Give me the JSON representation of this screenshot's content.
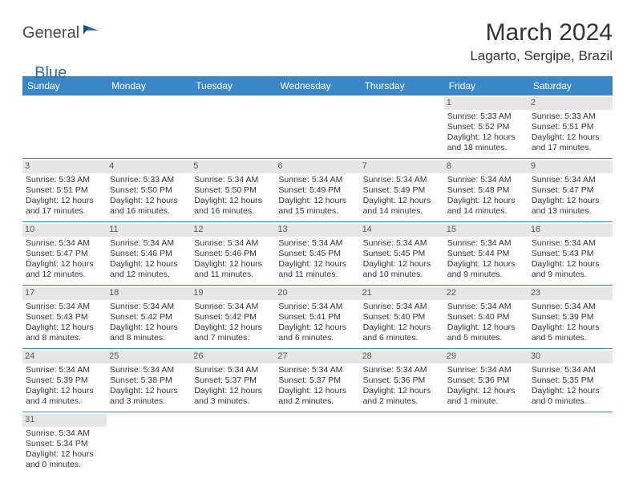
{
  "logo": {
    "part1": "General",
    "part2": "Blue"
  },
  "title": "March 2024",
  "location": "Lagarto, Sergipe, Brazil",
  "colors": {
    "header_bg": "#3b86c6",
    "header_text": "#ffffff",
    "daynum_bg": "#e6e6e6",
    "row_border": "#3b86c6",
    "body_text": "#333333",
    "logo_gray": "#4a4a4a",
    "logo_blue": "#2f6fa8"
  },
  "day_labels": [
    "Sunday",
    "Monday",
    "Tuesday",
    "Wednesday",
    "Thursday",
    "Friday",
    "Saturday"
  ],
  "weeks": [
    [
      {
        "empty": true
      },
      {
        "empty": true
      },
      {
        "empty": true
      },
      {
        "empty": true
      },
      {
        "empty": true
      },
      {
        "day": "1",
        "sunrise": "Sunrise: 5:33 AM",
        "sunset": "Sunset: 5:52 PM",
        "dl1": "Daylight: 12 hours",
        "dl2": "and 18 minutes."
      },
      {
        "day": "2",
        "sunrise": "Sunrise: 5:33 AM",
        "sunset": "Sunset: 5:51 PM",
        "dl1": "Daylight: 12 hours",
        "dl2": "and 17 minutes."
      }
    ],
    [
      {
        "day": "3",
        "sunrise": "Sunrise: 5:33 AM",
        "sunset": "Sunset: 5:51 PM",
        "dl1": "Daylight: 12 hours",
        "dl2": "and 17 minutes."
      },
      {
        "day": "4",
        "sunrise": "Sunrise: 5:33 AM",
        "sunset": "Sunset: 5:50 PM",
        "dl1": "Daylight: 12 hours",
        "dl2": "and 16 minutes."
      },
      {
        "day": "5",
        "sunrise": "Sunrise: 5:34 AM",
        "sunset": "Sunset: 5:50 PM",
        "dl1": "Daylight: 12 hours",
        "dl2": "and 16 minutes."
      },
      {
        "day": "6",
        "sunrise": "Sunrise: 5:34 AM",
        "sunset": "Sunset: 5:49 PM",
        "dl1": "Daylight: 12 hours",
        "dl2": "and 15 minutes."
      },
      {
        "day": "7",
        "sunrise": "Sunrise: 5:34 AM",
        "sunset": "Sunset: 5:49 PM",
        "dl1": "Daylight: 12 hours",
        "dl2": "and 14 minutes."
      },
      {
        "day": "8",
        "sunrise": "Sunrise: 5:34 AM",
        "sunset": "Sunset: 5:48 PM",
        "dl1": "Daylight: 12 hours",
        "dl2": "and 14 minutes."
      },
      {
        "day": "9",
        "sunrise": "Sunrise: 5:34 AM",
        "sunset": "Sunset: 5:47 PM",
        "dl1": "Daylight: 12 hours",
        "dl2": "and 13 minutes."
      }
    ],
    [
      {
        "day": "10",
        "sunrise": "Sunrise: 5:34 AM",
        "sunset": "Sunset: 5:47 PM",
        "dl1": "Daylight: 12 hours",
        "dl2": "and 12 minutes."
      },
      {
        "day": "11",
        "sunrise": "Sunrise: 5:34 AM",
        "sunset": "Sunset: 5:46 PM",
        "dl1": "Daylight: 12 hours",
        "dl2": "and 12 minutes."
      },
      {
        "day": "12",
        "sunrise": "Sunrise: 5:34 AM",
        "sunset": "Sunset: 5:46 PM",
        "dl1": "Daylight: 12 hours",
        "dl2": "and 11 minutes."
      },
      {
        "day": "13",
        "sunrise": "Sunrise: 5:34 AM",
        "sunset": "Sunset: 5:45 PM",
        "dl1": "Daylight: 12 hours",
        "dl2": "and 11 minutes."
      },
      {
        "day": "14",
        "sunrise": "Sunrise: 5:34 AM",
        "sunset": "Sunset: 5:45 PM",
        "dl1": "Daylight: 12 hours",
        "dl2": "and 10 minutes."
      },
      {
        "day": "15",
        "sunrise": "Sunrise: 5:34 AM",
        "sunset": "Sunset: 5:44 PM",
        "dl1": "Daylight: 12 hours",
        "dl2": "and 9 minutes."
      },
      {
        "day": "16",
        "sunrise": "Sunrise: 5:34 AM",
        "sunset": "Sunset: 5:43 PM",
        "dl1": "Daylight: 12 hours",
        "dl2": "and 9 minutes."
      }
    ],
    [
      {
        "day": "17",
        "sunrise": "Sunrise: 5:34 AM",
        "sunset": "Sunset: 5:43 PM",
        "dl1": "Daylight: 12 hours",
        "dl2": "and 8 minutes."
      },
      {
        "day": "18",
        "sunrise": "Sunrise: 5:34 AM",
        "sunset": "Sunset: 5:42 PM",
        "dl1": "Daylight: 12 hours",
        "dl2": "and 8 minutes."
      },
      {
        "day": "19",
        "sunrise": "Sunrise: 5:34 AM",
        "sunset": "Sunset: 5:42 PM",
        "dl1": "Daylight: 12 hours",
        "dl2": "and 7 minutes."
      },
      {
        "day": "20",
        "sunrise": "Sunrise: 5:34 AM",
        "sunset": "Sunset: 5:41 PM",
        "dl1": "Daylight: 12 hours",
        "dl2": "and 6 minutes."
      },
      {
        "day": "21",
        "sunrise": "Sunrise: 5:34 AM",
        "sunset": "Sunset: 5:40 PM",
        "dl1": "Daylight: 12 hours",
        "dl2": "and 6 minutes."
      },
      {
        "day": "22",
        "sunrise": "Sunrise: 5:34 AM",
        "sunset": "Sunset: 5:40 PM",
        "dl1": "Daylight: 12 hours",
        "dl2": "and 5 minutes."
      },
      {
        "day": "23",
        "sunrise": "Sunrise: 5:34 AM",
        "sunset": "Sunset: 5:39 PM",
        "dl1": "Daylight: 12 hours",
        "dl2": "and 5 minutes."
      }
    ],
    [
      {
        "day": "24",
        "sunrise": "Sunrise: 5:34 AM",
        "sunset": "Sunset: 5:39 PM",
        "dl1": "Daylight: 12 hours",
        "dl2": "and 4 minutes."
      },
      {
        "day": "25",
        "sunrise": "Sunrise: 5:34 AM",
        "sunset": "Sunset: 5:38 PM",
        "dl1": "Daylight: 12 hours",
        "dl2": "and 3 minutes."
      },
      {
        "day": "26",
        "sunrise": "Sunrise: 5:34 AM",
        "sunset": "Sunset: 5:37 PM",
        "dl1": "Daylight: 12 hours",
        "dl2": "and 3 minutes."
      },
      {
        "day": "27",
        "sunrise": "Sunrise: 5:34 AM",
        "sunset": "Sunset: 5:37 PM",
        "dl1": "Daylight: 12 hours",
        "dl2": "and 2 minutes."
      },
      {
        "day": "28",
        "sunrise": "Sunrise: 5:34 AM",
        "sunset": "Sunset: 5:36 PM",
        "dl1": "Daylight: 12 hours",
        "dl2": "and 2 minutes."
      },
      {
        "day": "29",
        "sunrise": "Sunrise: 5:34 AM",
        "sunset": "Sunset: 5:36 PM",
        "dl1": "Daylight: 12 hours",
        "dl2": "and 1 minute."
      },
      {
        "day": "30",
        "sunrise": "Sunrise: 5:34 AM",
        "sunset": "Sunset: 5:35 PM",
        "dl1": "Daylight: 12 hours",
        "dl2": "and 0 minutes."
      }
    ],
    [
      {
        "day": "31",
        "sunrise": "Sunrise: 5:34 AM",
        "sunset": "Sunset: 5:34 PM",
        "dl1": "Daylight: 12 hours",
        "dl2": "and 0 minutes."
      },
      {
        "empty": true
      },
      {
        "empty": true
      },
      {
        "empty": true
      },
      {
        "empty": true
      },
      {
        "empty": true
      },
      {
        "empty": true
      }
    ]
  ]
}
